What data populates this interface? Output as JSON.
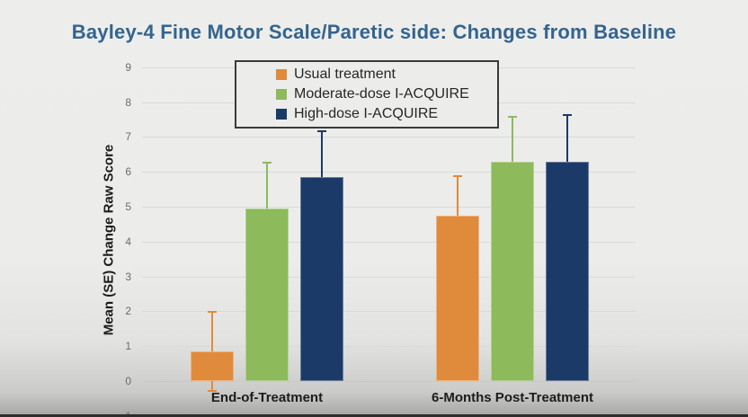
{
  "chart_data": {
    "type": "bar",
    "title": "Bayley-4 Fine Motor Scale/Paretic side: Changes from Baseline",
    "title_color": "#34648F",
    "xlabel": "",
    "ylabel": "Mean (SE) Change Raw Score",
    "categories": [
      "End-of-Treatment",
      "6-Months Post-Treatment"
    ],
    "series": [
      {
        "name": "Usual treatment",
        "color": "#E08A3C",
        "values": [
          0.85,
          4.75
        ],
        "se": [
          1.15,
          1.15
        ]
      },
      {
        "name": "Moderate-dose I-ACQUIRE",
        "color": "#8DBA5B",
        "values": [
          4.95,
          6.3
        ],
        "se": [
          1.35,
          1.3
        ]
      },
      {
        "name": "High-dose I-ACQUIRE",
        "color": "#1B3A68",
        "values": [
          5.85,
          6.3
        ],
        "se": [
          1.35,
          1.35
        ]
      }
    ],
    "ylim": [
      -1,
      9
    ],
    "ytick_step": 1,
    "grid": true,
    "error_bars": "SE",
    "legend_position": "top-center-inside"
  }
}
